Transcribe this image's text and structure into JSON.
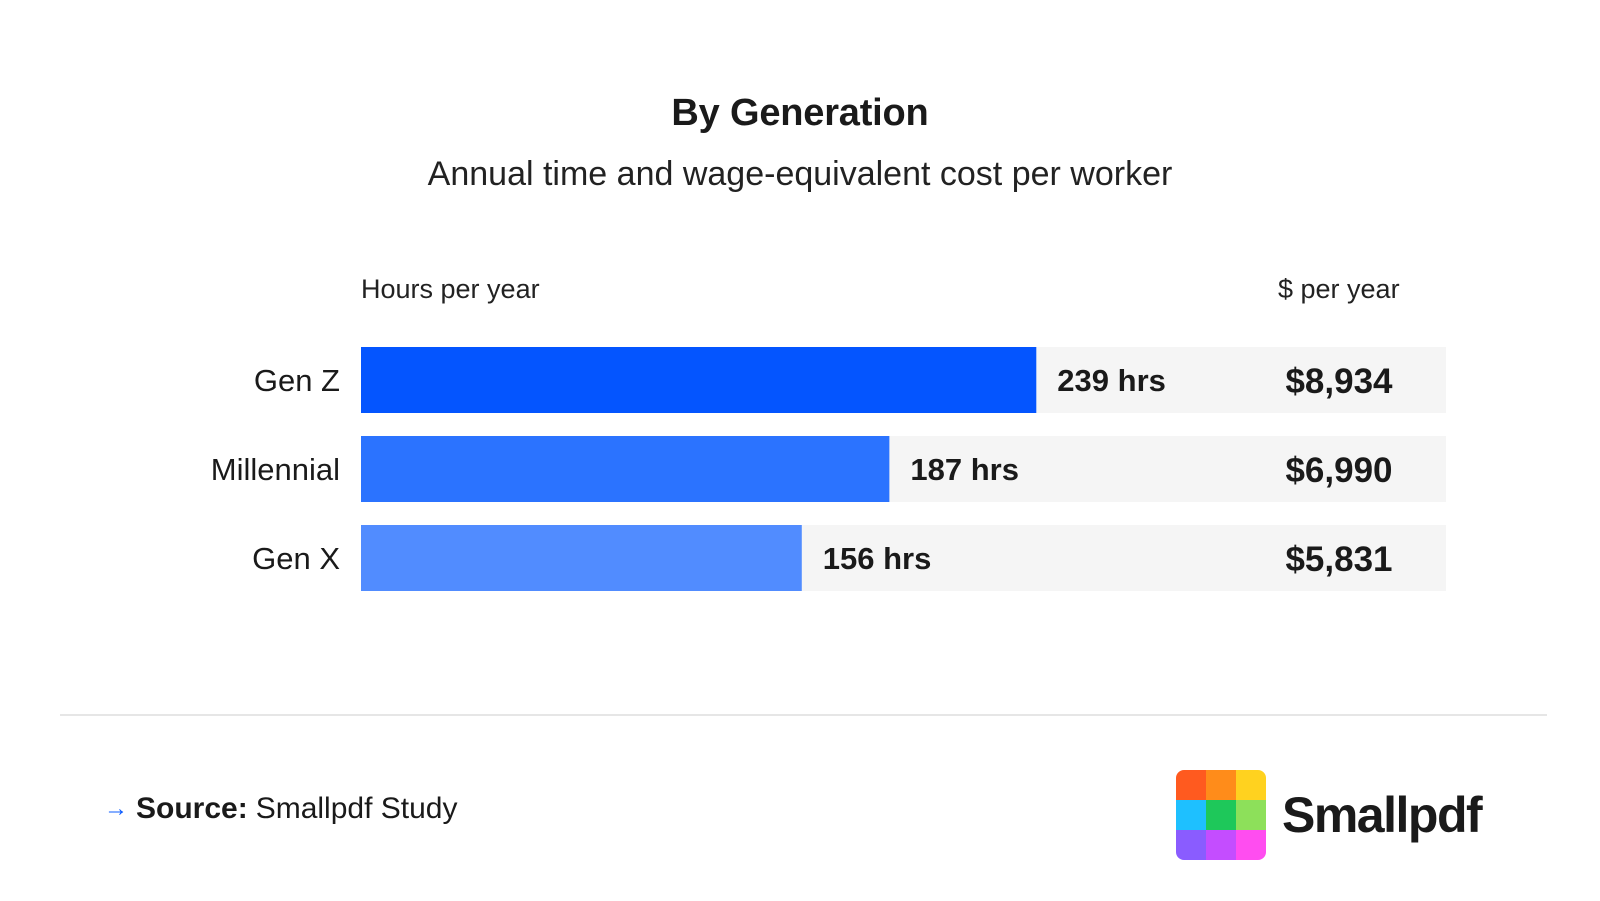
{
  "chart_data": {
    "type": "bar",
    "orientation": "horizontal",
    "title": "By Generation",
    "subtitle": "Annual time and wage-equivalent cost per worker",
    "column_headers": {
      "hours": "Hours per year",
      "cost": "$ per year"
    },
    "categories": [
      "Gen Z",
      "Millennial",
      "Gen X"
    ],
    "values": [
      239,
      187,
      156
    ],
    "value_labels": [
      "239 hrs",
      "187 hrs",
      "156 hrs"
    ],
    "cost_values": [
      8934,
      6990,
      5831
    ],
    "cost_labels": [
      "$8,934",
      "$6,990",
      "$5,831"
    ],
    "xlim": [
      0,
      384
    ],
    "bar_colors": [
      "#0455ff",
      "#2b73ff",
      "#518cff"
    ],
    "track_color": "#f5f5f5",
    "grid": false,
    "legend": "none"
  },
  "footer": {
    "arrow_icon": "arrow-right-icon",
    "source_key": "Source:",
    "source_value": "Smallpdf Study"
  },
  "brand": {
    "name": "Smallpdf",
    "logo_colors": [
      "#ff5a1f",
      "#ff8c1a",
      "#ffd21f",
      "#1ec0ff",
      "#1ec85a",
      "#8de05a",
      "#8a5cff",
      "#c44dff",
      "#ff4df0"
    ]
  }
}
